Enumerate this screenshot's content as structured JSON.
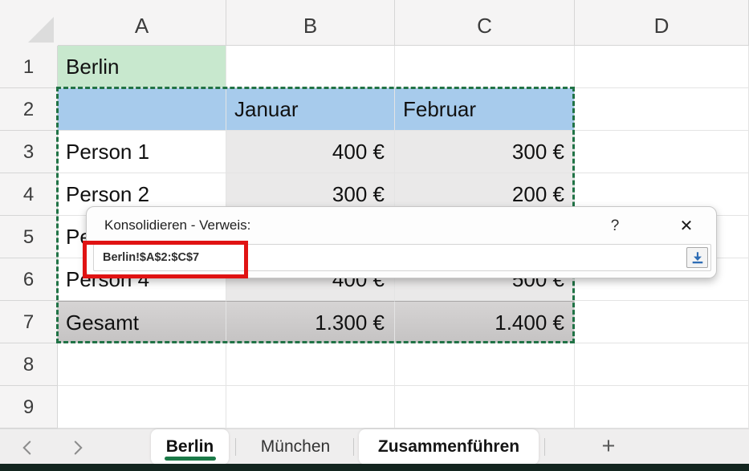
{
  "spreadsheet": {
    "col_headers": [
      "A",
      "B",
      "C",
      "D"
    ],
    "row_headers": [
      "1",
      "2",
      "3",
      "4",
      "5",
      "6",
      "7",
      "8",
      "9"
    ],
    "cells": [
      {
        "row": 1,
        "col": "A",
        "text": "Berlin",
        "bg": "green",
        "align": "left"
      },
      {
        "row": 2,
        "col": "A",
        "text": "",
        "bg": "blue",
        "align": "left"
      },
      {
        "row": 2,
        "col": "B",
        "text": "Januar",
        "bg": "blue",
        "align": "left"
      },
      {
        "row": 2,
        "col": "C",
        "text": "Februar",
        "bg": "blue",
        "align": "left"
      },
      {
        "row": 3,
        "col": "A",
        "text": "Person 1",
        "bg": "none",
        "align": "left"
      },
      {
        "row": 3,
        "col": "B",
        "text": "400 €",
        "bg": "gray",
        "align": "right"
      },
      {
        "row": 3,
        "col": "C",
        "text": "300 €",
        "bg": "gray",
        "align": "right"
      },
      {
        "row": 4,
        "col": "A",
        "text": "Person 2",
        "bg": "none",
        "align": "left"
      },
      {
        "row": 4,
        "col": "B",
        "text": "300 €",
        "bg": "gray",
        "align": "right"
      },
      {
        "row": 4,
        "col": "C",
        "text": "200 €",
        "bg": "gray",
        "align": "right"
      },
      {
        "row": 5,
        "col": "A",
        "text": "Pe",
        "bg": "none",
        "align": "left"
      },
      {
        "row": 6,
        "col": "A",
        "text": "Person 4",
        "bg": "none",
        "align": "left"
      },
      {
        "row": 6,
        "col": "B",
        "text": "400 €",
        "bg": "gray",
        "align": "right"
      },
      {
        "row": 6,
        "col": "C",
        "text": "500 €",
        "bg": "gray",
        "align": "right"
      },
      {
        "row": 7,
        "col": "A",
        "text": "Gesamt",
        "bg": "total",
        "align": "left"
      },
      {
        "row": 7,
        "col": "B",
        "text": "1.300 €",
        "bg": "total",
        "align": "right"
      },
      {
        "row": 7,
        "col": "C",
        "text": "1.400 €",
        "bg": "total",
        "align": "right"
      }
    ],
    "selected_range": "A2:C7"
  },
  "dialog": {
    "title": "Konsolidieren - Verweis:",
    "help_label": "?",
    "close_label": "✕",
    "reference_value": "Berlin!$A$2:$C$7",
    "collapse_icon": "collapse-dialog-icon"
  },
  "annotation": {
    "highlight_color": "#e01313"
  },
  "tabs": {
    "prev_icon": "chevron-left-icon",
    "next_icon": "chevron-right-icon",
    "items": [
      {
        "label": "Berlin",
        "active": true
      },
      {
        "label": "München",
        "active": false
      },
      {
        "label": "Zusammenführen",
        "active": false
      }
    ],
    "add_label": "+"
  },
  "colors": {
    "cell_green": "#c8e8ce",
    "cell_blue": "#a7cbec",
    "cell_gray": "#eae9e9",
    "total_gray": "#c9c6c6",
    "selection_dash_green": "#217346",
    "active_tab_underline": "#1b7a48",
    "bottom_strip": "#13251f",
    "annotation_red": "#e01313",
    "collapse_arrow_blue": "#2e6db5"
  }
}
